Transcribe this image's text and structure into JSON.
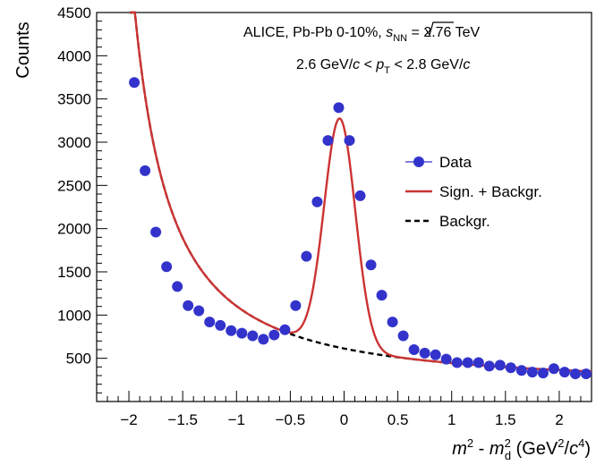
{
  "chart_data": {
    "type": "scatter",
    "xlabel": "m² - m²d  (GeV²/c⁴)",
    "ylabel": "Counts",
    "xlim": [
      -2.3,
      2.3
    ],
    "ylim": [
      0,
      4500
    ],
    "x_ticks": [
      "−2",
      "−1.5",
      "−1",
      "−0.5",
      "0",
      "0.5",
      "1",
      "1.5",
      "2"
    ],
    "y_ticks": [
      "500",
      "1000",
      "1500",
      "2000",
      "2500",
      "3000",
      "3500",
      "4000",
      "4500"
    ],
    "grid": false,
    "legend_position": "right",
    "annotations": {
      "line1_prefix": "ALICE, Pb-Pb 0-10%, ",
      "line1_suffix": " = 2.76 TeV",
      "line2": "2.6 GeV/c < pT < 2.8 GeV/c"
    },
    "series": [
      {
        "name": "Data",
        "kind": "points",
        "color": "#3333cc",
        "x": [
          -1.95,
          -1.85,
          -1.75,
          -1.65,
          -1.55,
          -1.45,
          -1.35,
          -1.25,
          -1.15,
          -1.05,
          -0.95,
          -0.85,
          -0.75,
          -0.65,
          -0.55,
          -0.45,
          -0.35,
          -0.25,
          -0.15,
          -0.05,
          0.05,
          0.15,
          0.25,
          0.35,
          0.45,
          0.55,
          0.65,
          0.75,
          0.85,
          0.95,
          1.05,
          1.15,
          1.25,
          1.35,
          1.45,
          1.55,
          1.65,
          1.75,
          1.85,
          1.95,
          2.05,
          2.15,
          2.25
        ],
        "y": [
          3690,
          2670,
          1960,
          1560,
          1330,
          1110,
          1050,
          920,
          880,
          820,
          790,
          760,
          720,
          770,
          830,
          1110,
          1680,
          2310,
          3020,
          3400,
          3020,
          2380,
          1580,
          1230,
          920,
          760,
          600,
          560,
          540,
          490,
          450,
          450,
          450,
          410,
          420,
          390,
          360,
          340,
          330,
          380,
          340,
          320,
          320
        ]
      },
      {
        "name": "Sign. + Backgr.",
        "kind": "line",
        "color": "#cc3333"
      },
      {
        "name": "Backgr.",
        "kind": "dashed-line",
        "color": "#000000"
      }
    ]
  }
}
